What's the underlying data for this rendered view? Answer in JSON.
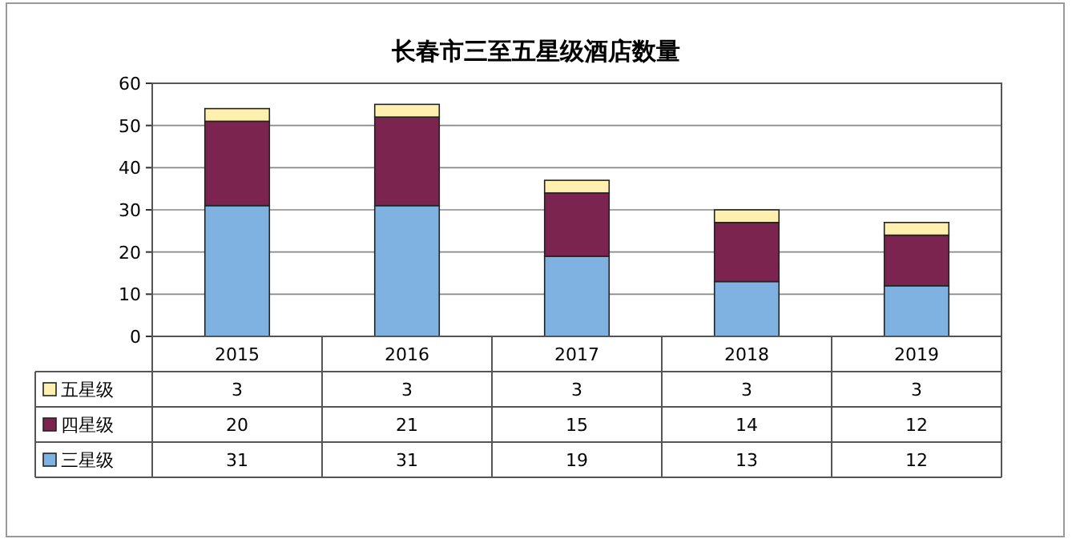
{
  "chart_data": {
    "type": "bar",
    "title": "长春市三至五星级酒店数量",
    "stacked": true,
    "categories": [
      "2015",
      "2016",
      "2017",
      "2018",
      "2019"
    ],
    "series": [
      {
        "name": "三星级",
        "color": "#7fb2e0",
        "values": [
          31,
          31,
          19,
          13,
          12
        ]
      },
      {
        "name": "四星级",
        "color": "#7b2450",
        "values": [
          20,
          21,
          15,
          14,
          12
        ]
      },
      {
        "name": "五星级",
        "color": "#fff0b0",
        "values": [
          3,
          3,
          3,
          3,
          3
        ]
      }
    ],
    "ylim": [
      0,
      60
    ],
    "yticks": [
      0,
      10,
      20,
      30,
      40,
      50,
      60
    ],
    "grid": "y",
    "legend": "left",
    "data_labels": true
  }
}
